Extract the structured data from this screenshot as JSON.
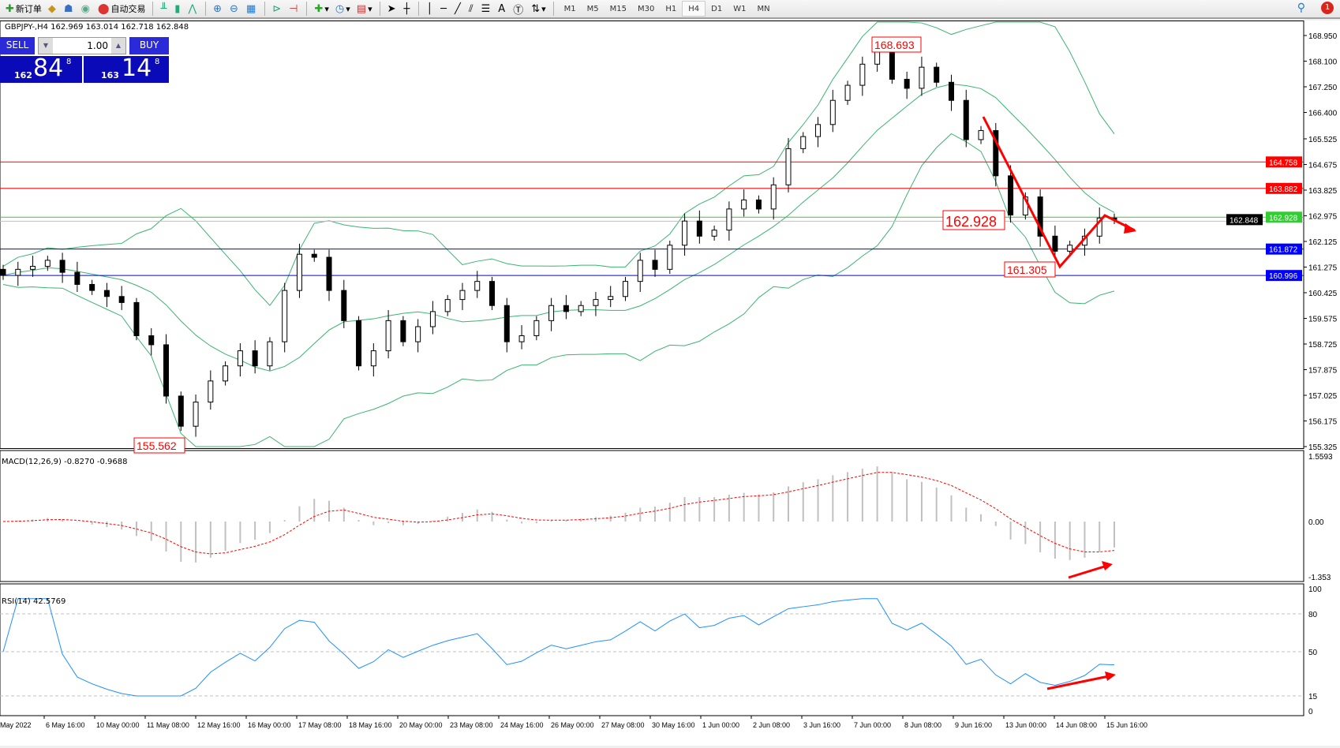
{
  "toolbar": {
    "new_order": "新订单",
    "auto_trading": "自动交易",
    "timeframes": [
      "M1",
      "M5",
      "M15",
      "M30",
      "H1",
      "H4",
      "D1",
      "W1",
      "MN"
    ],
    "active_timeframe": "H4",
    "notification_count": "1"
  },
  "chart": {
    "info": "GBPJPY-,H4  162.969 163.014 162.718 162.848",
    "macd_label": "MACD(12,26,9) -0.8270 -0.9688",
    "rsi_label": "RSI(14) 42.5769"
  },
  "one_click": {
    "sell": "SELL",
    "buy": "BUY",
    "volume": "1.00",
    "sell_prefix": "162",
    "sell_big": "84",
    "sell_sup": "8",
    "buy_prefix": "163",
    "buy_big": "14",
    "buy_sup": "8"
  },
  "annotations": {
    "high": "168.693",
    "current": "162.928",
    "low_recent": "161.305",
    "low": "155.562"
  },
  "colors": {
    "bull_bear": "#000000",
    "bands": "#3cb371",
    "macd_signal": "#ff0000",
    "macd_hist": "#c0c0c0",
    "rsi": "#1e90ff",
    "arrows": "#ff0000"
  },
  "chart_data": {
    "type": "candlestick",
    "symbol": "GBPJPY-",
    "timeframe": "H4",
    "closes": [
      161.0,
      161.2,
      161.3,
      161.5,
      161.1,
      160.7,
      160.5,
      160.3,
      160.1,
      159.0,
      158.7,
      157.0,
      156.0,
      156.8,
      157.5,
      158.0,
      158.5,
      158.0,
      158.8,
      160.5,
      161.7,
      161.6,
      160.5,
      159.5,
      158.0,
      158.5,
      159.5,
      158.8,
      159.3,
      159.8,
      160.2,
      160.5,
      160.8,
      160.0,
      158.8,
      159.0,
      159.5,
      160.0,
      159.8,
      160.0,
      160.2,
      160.3,
      160.8,
      161.5,
      161.2,
      162.0,
      162.8,
      162.3,
      162.5,
      163.2,
      163.5,
      163.2,
      164.0,
      165.2,
      165.6,
      166.0,
      166.8,
      167.3,
      168.0,
      168.5,
      167.5,
      167.2,
      167.9,
      167.4,
      166.8,
      165.5,
      165.8,
      164.3,
      163.0,
      163.6,
      162.3,
      161.8,
      162.0,
      162.3,
      162.9,
      162.85
    ],
    "price_axis": [
      "168.950",
      "168.100",
      "167.250",
      "166.400",
      "165.525",
      "164.675",
      "163.825",
      "162.975",
      "162.125",
      "161.275",
      "160.425",
      "159.575",
      "158.725",
      "157.875",
      "157.025",
      "156.175",
      "155.325"
    ],
    "ylim": [
      155.325,
      168.95
    ],
    "hlines": [
      {
        "price": "164.758",
        "color": "#ff0000"
      },
      {
        "price": "163.882",
        "color": "#ff0000"
      },
      {
        "price": "162.928",
        "color": "#32cd32"
      },
      {
        "price": "161.872",
        "color": "#0000ff"
      },
      {
        "price": "160.996",
        "color": "#0000ff"
      }
    ],
    "bid_tag": "162.848",
    "macd_axis": [
      "1.5593",
      "0.00",
      "-1.353"
    ],
    "rsi_axis": [
      "100",
      "80",
      "50",
      "15",
      "0"
    ],
    "time_axis": [
      "May 2022",
      "6 May 16:00",
      "10 May 00:00",
      "11 May 08:00",
      "12 May 16:00",
      "16 May 00:00",
      "17 May 08:00",
      "18 May 16:00",
      "20 May 00:00",
      "23 May 08:00",
      "24 May 16:00",
      "26 May 00:00",
      "27 May 08:00",
      "30 May 16:00",
      "1 Jun 00:00",
      "2 Jun 08:00",
      "3 Jun 16:00",
      "7 Jun 00:00",
      "8 Jun 08:00",
      "9 Jun 16:00",
      "13 Jun 00:00",
      "14 Jun 08:00",
      "15 Jun 16:00"
    ]
  }
}
